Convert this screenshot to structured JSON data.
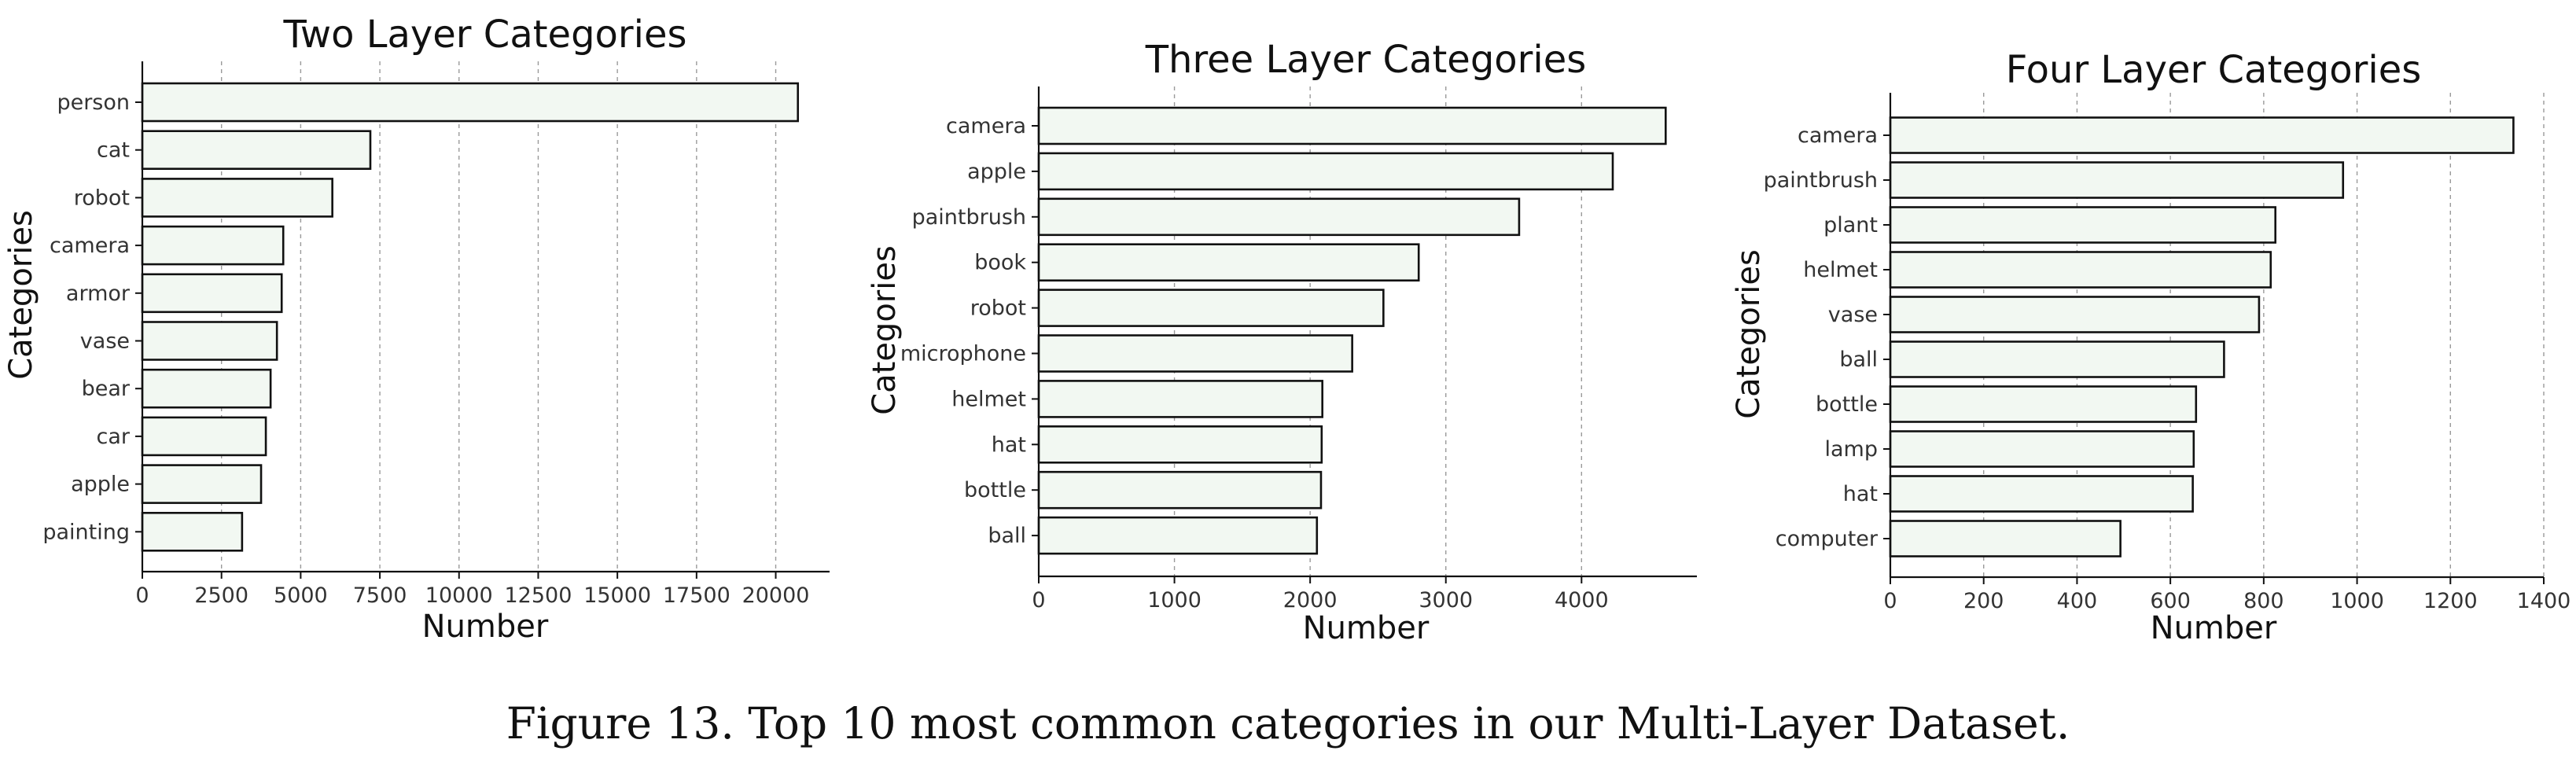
{
  "caption": "Figure 13. Top 10 most common categories in our Multi-Layer Dataset.",
  "colors": {
    "bar_fill": "#f2f8f2",
    "bar_edge": "#111111",
    "grid": "#9a9a9a"
  },
  "chart_data": [
    {
      "type": "bar",
      "orientation": "horizontal",
      "title": "Two Layer Categories",
      "xlabel": "Number",
      "ylabel": "Categories",
      "categories": [
        "person",
        "cat",
        "robot",
        "camera",
        "armor",
        "vase",
        "bear",
        "car",
        "apple",
        "painting"
      ],
      "values": [
        20700,
        7200,
        6000,
        4450,
        4400,
        4250,
        4050,
        3900,
        3750,
        3150
      ],
      "xlim": [
        0,
        21700
      ],
      "xticks": [
        0,
        2500,
        5000,
        7500,
        10000,
        12500,
        15000,
        17500,
        20000
      ],
      "grid": "x-dashed",
      "legend": "none"
    },
    {
      "type": "bar",
      "orientation": "horizontal",
      "title": "Three Layer Categories",
      "xlabel": "Number",
      "ylabel": "Categories",
      "categories": [
        "camera",
        "apple",
        "paintbrush",
        "book",
        "robot",
        "microphone",
        "helmet",
        "hat",
        "bottle",
        "ball"
      ],
      "values": [
        4620,
        4230,
        3540,
        2800,
        2540,
        2310,
        2090,
        2085,
        2080,
        2050
      ],
      "xlim": [
        0,
        4850
      ],
      "xticks": [
        0,
        1000,
        2000,
        3000,
        4000
      ],
      "grid": "x-dashed",
      "legend": "none"
    },
    {
      "type": "bar",
      "orientation": "horizontal",
      "title": "Four Layer Categories",
      "xlabel": "Number",
      "ylabel": "Categories",
      "categories": [
        "camera",
        "paintbrush",
        "plant",
        "helmet",
        "vase",
        "ball",
        "bottle",
        "lamp",
        "hat",
        "computer"
      ],
      "values": [
        1335,
        970,
        825,
        815,
        790,
        715,
        655,
        650,
        648,
        493
      ],
      "xlim": [
        0,
        1400
      ],
      "xticks": [
        0,
        200,
        400,
        600,
        800,
        1000,
        1200,
        1400
      ],
      "grid": "x-dashed",
      "legend": "none"
    }
  ]
}
